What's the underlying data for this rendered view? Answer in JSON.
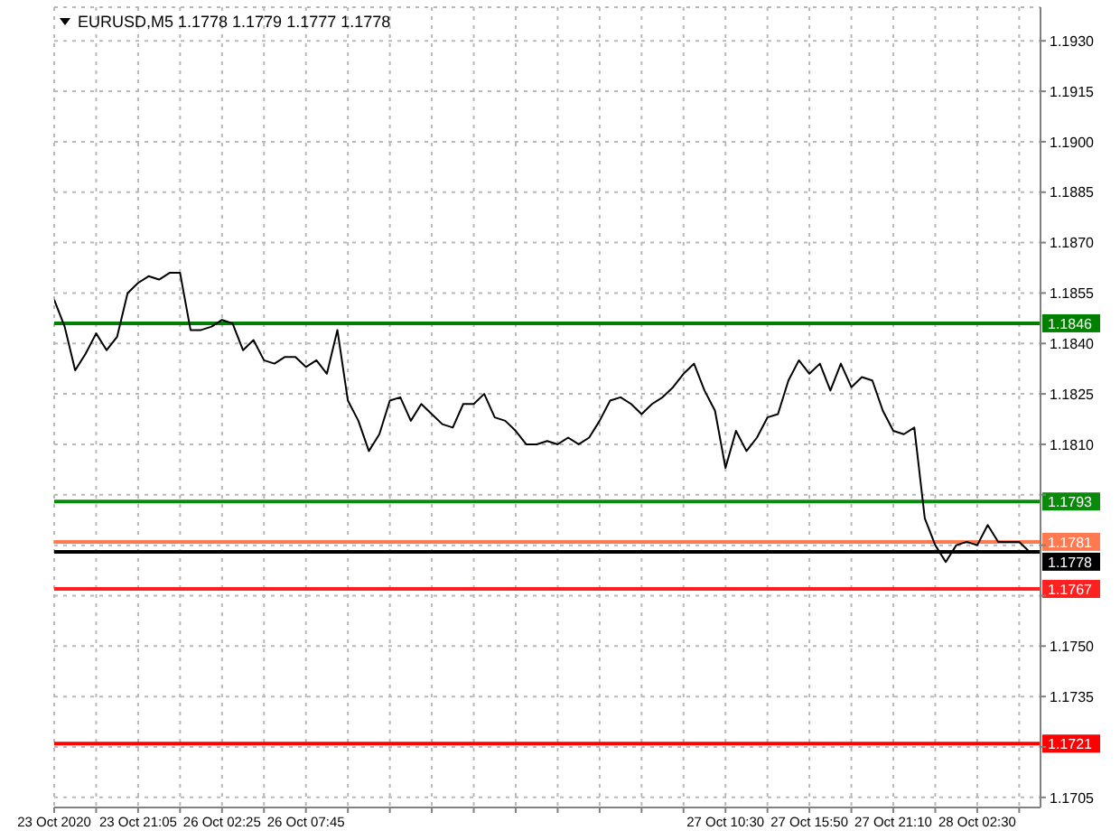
{
  "chart_data": {
    "type": "line",
    "title": "EURUSD,M5  1.1778 1.1779 1.1777 1.1778",
    "categories": [
      "23 Oct 2020",
      null,
      null,
      null,
      null,
      null,
      null,
      null,
      "23 Oct 21:05",
      null,
      null,
      null,
      null,
      null,
      null,
      null,
      "26 Oct 02:25",
      null,
      null,
      null,
      null,
      null,
      null,
      null,
      "26 Oct 07:45",
      null,
      null,
      null,
      null,
      null,
      null,
      null,
      null,
      null,
      null,
      null,
      null,
      null,
      null,
      null,
      null,
      null,
      null,
      null,
      null,
      null,
      null,
      null,
      null,
      null,
      null,
      null,
      null,
      null,
      null,
      null,
      null,
      null,
      null,
      null,
      null,
      null,
      null,
      null,
      "27 Oct 10:30",
      null,
      null,
      null,
      null,
      null,
      null,
      null,
      "27 Oct 15:50",
      null,
      null,
      null,
      null,
      null,
      null,
      null,
      "27 Oct 21:10",
      null,
      null,
      null,
      null,
      null,
      null,
      null,
      "28 Oct 02:30",
      null,
      null,
      null,
      null,
      null
    ],
    "series": [
      {
        "color": "#000000",
        "values": [
          1.1853,
          1.1845,
          1.1832,
          1.1837,
          1.1843,
          1.1838,
          1.1842,
          1.1855,
          1.1858,
          1.186,
          1.1859,
          1.1861,
          1.1861,
          1.1844,
          1.1844,
          1.1845,
          1.1847,
          1.1846,
          1.1838,
          1.1841,
          1.1835,
          1.1834,
          1.1836,
          1.1836,
          1.1833,
          1.1835,
          1.1831,
          1.1844,
          1.1823,
          1.1817,
          1.1808,
          1.1813,
          1.1823,
          1.1824,
          1.1817,
          1.1822,
          1.1819,
          1.1816,
          1.1815,
          1.1822,
          1.1822,
          1.1825,
          1.1818,
          1.1817,
          1.1814,
          1.181,
          1.181,
          1.1811,
          1.181,
          1.1812,
          1.181,
          1.1812,
          1.1817,
          1.1823,
          1.1824,
          1.1822,
          1.1819,
          1.1822,
          1.1824,
          1.1827,
          1.1831,
          1.1834,
          1.1826,
          1.182,
          1.1803,
          1.1814,
          1.1808,
          1.1812,
          1.1818,
          1.1819,
          1.1829,
          1.1835,
          1.1831,
          1.1834,
          1.1826,
          1.1834,
          1.1827,
          1.183,
          1.1829,
          1.182,
          1.1814,
          1.1813,
          1.1815,
          1.1788,
          1.178,
          1.1775,
          1.178,
          1.1781,
          1.178,
          1.1786,
          1.1781,
          1.1781,
          1.1781,
          1.1778
        ]
      }
    ],
    "ylim": [
      1.1702,
      1.194
    ],
    "yticks": [
      1.1705,
      {
        "value": 1.172,
        "label": null
      },
      1.1735,
      {
        "value": 1.175,
        "label": "1.1750"
      },
      {
        "value": 1.1765,
        "label": null
      },
      {
        "value": 1.178,
        "label": null
      },
      {
        "value": 1.1795,
        "label": null
      },
      {
        "value": 1.181,
        "label": "1.1810"
      },
      1.1825,
      {
        "value": 1.184,
        "label": "1.1840"
      },
      1.1855,
      {
        "value": 1.187,
        "label": "1.1870"
      },
      1.1885,
      {
        "value": 1.19,
        "label": "1.1900"
      },
      1.1915,
      {
        "value": 1.193,
        "label": "1.1930"
      }
    ],
    "ref_lines": [
      {
        "axis": "y",
        "value": 1.1846,
        "label": "1.1846",
        "color": "#008000"
      },
      {
        "axis": "y",
        "value": 1.1793,
        "label": "1.1793",
        "color": "#0a8a0a"
      },
      {
        "axis": "y",
        "value": 1.1781,
        "label": "1.1781",
        "color": "#ff7a50"
      },
      {
        "axis": "y",
        "value": 1.1778,
        "label": "1.1778",
        "color": "#000000"
      },
      {
        "axis": "y",
        "value": 1.1767,
        "label": "1.1767",
        "color": "#ff2020"
      },
      {
        "axis": "y",
        "value": 1.1721,
        "label": "1.1721",
        "color": "#ff0000"
      }
    ],
    "grid": true,
    "marker": "none",
    "line_style": "solid"
  }
}
